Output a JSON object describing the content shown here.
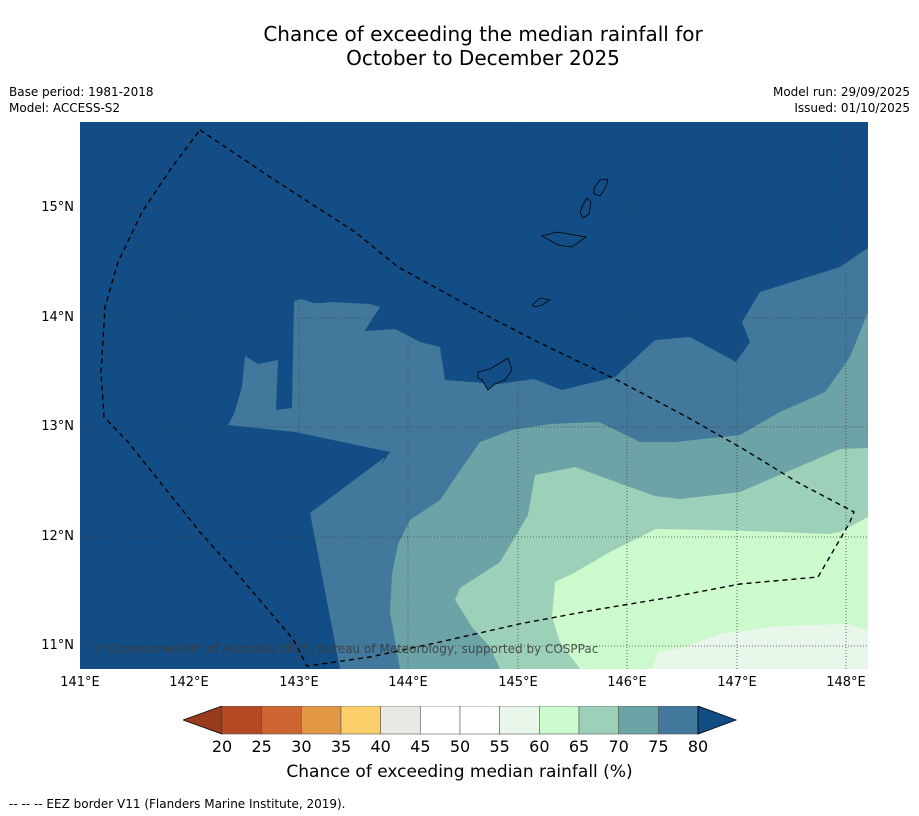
{
  "title": {
    "line1": "Chance of exceeding the median rainfall for",
    "line2": "October to December 2025"
  },
  "meta": {
    "base_period": "Base period: 1981-2018",
    "model": "Model: ACCESS-S2",
    "model_run": "Model run: 29/09/2025",
    "issued": "Issued: 01/10/2025"
  },
  "map": {
    "lon_ticks": [
      "141°E",
      "142°E",
      "143°E",
      "144°E",
      "145°E",
      "146°E",
      "147°E",
      "148°E"
    ],
    "lat_ticks": [
      "15°N",
      "14°N",
      "13°N",
      "12°N",
      "11°N"
    ],
    "copyright": "© Commonwealth of Australia 2025, Bureau of Meteorology, supported by COSPPac",
    "colors": {
      "dark_blue": "#134d86",
      "mid_blue": "#41789b",
      "teal": "#6ba3a6",
      "mint": "#9dd0b8",
      "pale_green": "#ccfacc",
      "very_pale": "#e9f6ea",
      "grid": "#444444",
      "eez": "#000000"
    }
  },
  "colorbar": {
    "ticks": [
      "20",
      "25",
      "30",
      "35",
      "40",
      "45",
      "50",
      "55",
      "60",
      "65",
      "70",
      "75",
      "80"
    ],
    "low_extend_color": "#993b1e",
    "high_extend_color": "#134d86",
    "colors": [
      "#b44b24",
      "#cc6532",
      "#e39846",
      "#fdcf6a",
      "#e9e8e3",
      "#ffffff",
      "#ffffff",
      "#e9f6ea",
      "#ccfacc",
      "#9dd0b8",
      "#6ba3a6",
      "#41789b"
    ],
    "label": "Chance of exceeding median rainfall (%)"
  },
  "legend": {
    "eez_border": "--  --  -- EEZ border V11 (Flanders Marine Institute, 2019)."
  }
}
